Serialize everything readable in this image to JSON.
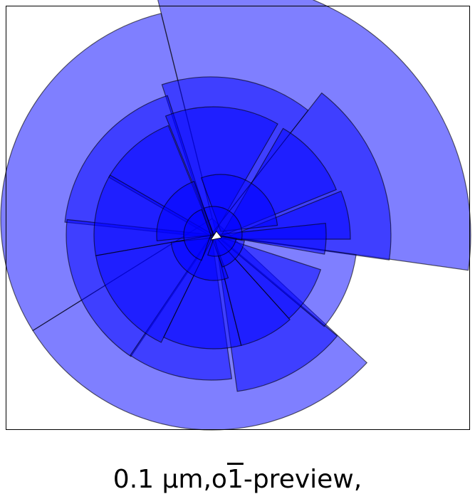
{
  "caption": {
    "prefix": "0.1 μm,o",
    "overline_char": "1",
    "suffix": "-preview,"
  },
  "colors": {
    "fill": "#0000ff",
    "stroke": "#000000",
    "frame": "#000000",
    "background": "#ffffff"
  },
  "wedge_style": {
    "fill_alpha": 0.5,
    "edge_color": "#000000"
  }
}
